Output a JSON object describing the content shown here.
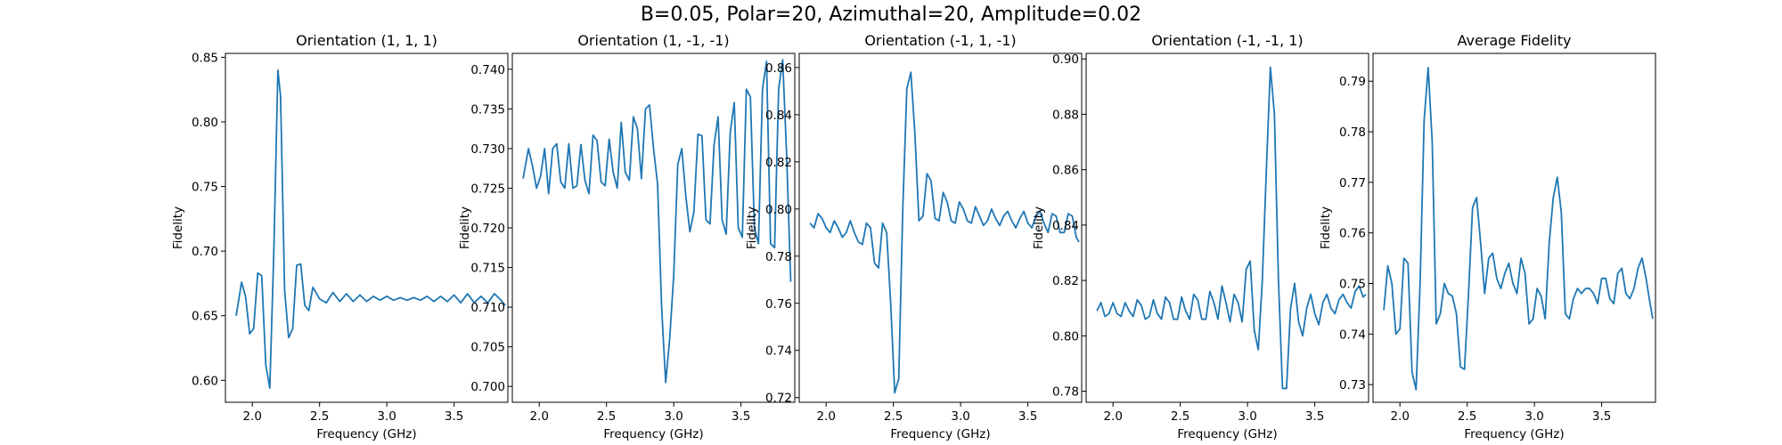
{
  "figure": {
    "suptitle": "B=0.05, Polar=20, Azimuthal=20, Amplitude=0.02"
  },
  "colors": {
    "line": "#1f77b4",
    "axes": "#000000",
    "background": "#ffffff"
  },
  "chart_data": [
    {
      "type": "line",
      "title": "Orientation (1, 1, 1)",
      "xlabel": "Frequency (GHz)",
      "ylabel": "Fidelity",
      "xlim": [
        1.8,
        3.9
      ],
      "ylim": [
        0.583,
        0.853
      ],
      "xticks": [
        2.0,
        2.5,
        3.0,
        3.5
      ],
      "xtick_labels": [
        "2.0",
        "2.5",
        "3.0",
        "3.5"
      ],
      "yticks": [
        0.6,
        0.65,
        0.7,
        0.75,
        0.8,
        0.85
      ],
      "ytick_labels": [
        "0.60",
        "0.65",
        "0.70",
        "0.75",
        "0.80",
        "0.85"
      ],
      "grid": false,
      "series": [
        {
          "x": [
            1.88,
            1.92,
            1.95,
            1.98,
            2.01,
            2.04,
            2.07,
            2.1,
            2.13,
            2.16,
            2.19,
            2.21,
            2.24,
            2.27,
            2.3,
            2.33,
            2.36,
            2.39,
            2.42,
            2.45,
            2.5,
            2.55,
            2.6,
            2.65,
            2.7,
            2.75,
            2.8,
            2.85,
            2.9,
            2.95,
            3.0,
            3.05,
            3.1,
            3.15,
            3.2,
            3.25,
            3.3,
            3.35,
            3.4,
            3.45,
            3.5,
            3.55,
            3.6,
            3.65,
            3.7,
            3.75,
            3.8,
            3.85,
            3.88
          ],
          "y": [
            0.65,
            0.676,
            0.665,
            0.636,
            0.64,
            0.683,
            0.681,
            0.612,
            0.594,
            0.7,
            0.84,
            0.82,
            0.67,
            0.633,
            0.64,
            0.689,
            0.69,
            0.658,
            0.654,
            0.672,
            0.663,
            0.66,
            0.668,
            0.661,
            0.667,
            0.661,
            0.666,
            0.661,
            0.665,
            0.662,
            0.665,
            0.662,
            0.664,
            0.662,
            0.664,
            0.662,
            0.665,
            0.661,
            0.665,
            0.661,
            0.666,
            0.66,
            0.667,
            0.66,
            0.665,
            0.66,
            0.667,
            0.662,
            0.658
          ]
        }
      ]
    },
    {
      "type": "line",
      "title": "Orientation (1, -1, -1)",
      "xlabel": "Frequency (GHz)",
      "ylabel": "Fidelity",
      "xlim": [
        1.8,
        3.9
      ],
      "ylim": [
        0.698,
        0.742
      ],
      "xticks": [
        2.0,
        2.5,
        3.0,
        3.5
      ],
      "xtick_labels": [
        "2.0",
        "2.5",
        "3.0",
        "3.5"
      ],
      "yticks": [
        0.7,
        0.705,
        0.71,
        0.715,
        0.72,
        0.725,
        0.73,
        0.735,
        0.74
      ],
      "ytick_labels": [
        "0.700",
        "0.705",
        "0.710",
        "0.715",
        "0.720",
        "0.725",
        "0.730",
        "0.735",
        "0.740"
      ],
      "grid": false,
      "series": [
        {
          "x": [
            1.88,
            1.92,
            1.95,
            1.98,
            2.01,
            2.04,
            2.07,
            2.1,
            2.13,
            2.16,
            2.19,
            2.22,
            2.25,
            2.28,
            2.31,
            2.34,
            2.37,
            2.4,
            2.43,
            2.46,
            2.49,
            2.52,
            2.55,
            2.58,
            2.61,
            2.64,
            2.67,
            2.7,
            2.73,
            2.76,
            2.79,
            2.82,
            2.85,
            2.88,
            2.91,
            2.94,
            2.97,
            3.0,
            3.03,
            3.06,
            3.09,
            3.12,
            3.15,
            3.18,
            3.21,
            3.24,
            3.27,
            3.3,
            3.33,
            3.36,
            3.39,
            3.42,
            3.45,
            3.48,
            3.51,
            3.54,
            3.57,
            3.6,
            3.63,
            3.66,
            3.69,
            3.72,
            3.75,
            3.78,
            3.81,
            3.84,
            3.87
          ],
          "y": [
            0.7262,
            0.73,
            0.7278,
            0.725,
            0.7265,
            0.73,
            0.7243,
            0.73,
            0.7306,
            0.7258,
            0.725,
            0.7306,
            0.725,
            0.7253,
            0.7305,
            0.726,
            0.7243,
            0.7317,
            0.731,
            0.7258,
            0.7253,
            0.7312,
            0.727,
            0.725,
            0.7333,
            0.727,
            0.726,
            0.734,
            0.7325,
            0.7262,
            0.735,
            0.7355,
            0.73,
            0.7255,
            0.71,
            0.7005,
            0.706,
            0.714,
            0.728,
            0.73,
            0.724,
            0.7195,
            0.722,
            0.7318,
            0.7316,
            0.721,
            0.7205,
            0.7305,
            0.734,
            0.721,
            0.7192,
            0.732,
            0.7358,
            0.72,
            0.7188,
            0.7375,
            0.7365,
            0.72,
            0.718,
            0.7375,
            0.741,
            0.718,
            0.7175,
            0.7375,
            0.7412,
            0.729,
            0.7132
          ]
        }
      ]
    },
    {
      "type": "line",
      "title": "Orientation (-1, 1, -1)",
      "xlabel": "Frequency (GHz)",
      "ylabel": "Fidelity",
      "xlim": [
        1.8,
        3.9
      ],
      "ylim": [
        0.718,
        0.866
      ],
      "xticks": [
        2.0,
        2.5,
        3.0,
        3.5
      ],
      "xtick_labels": [
        "2.0",
        "2.5",
        "3.0",
        "3.5"
      ],
      "yticks": [
        0.72,
        0.74,
        0.76,
        0.78,
        0.8,
        0.82,
        0.84,
        0.86
      ],
      "ytick_labels": [
        "0.72",
        "0.74",
        "0.76",
        "0.78",
        "0.80",
        "0.82",
        "0.84",
        "0.86"
      ],
      "grid": false,
      "series": [
        {
          "x": [
            1.88,
            1.91,
            1.94,
            1.97,
            2.0,
            2.03,
            2.06,
            2.09,
            2.12,
            2.15,
            2.18,
            2.21,
            2.24,
            2.27,
            2.3,
            2.33,
            2.36,
            2.39,
            2.42,
            2.45,
            2.48,
            2.51,
            2.54,
            2.57,
            2.6,
            2.63,
            2.66,
            2.69,
            2.72,
            2.75,
            2.78,
            2.81,
            2.84,
            2.87,
            2.9,
            2.93,
            2.96,
            2.99,
            3.02,
            3.05,
            3.08,
            3.11,
            3.14,
            3.17,
            3.2,
            3.23,
            3.26,
            3.29,
            3.32,
            3.35,
            3.38,
            3.41,
            3.44,
            3.47,
            3.5,
            3.53,
            3.56,
            3.59,
            3.62,
            3.65,
            3.68,
            3.71,
            3.74,
            3.77,
            3.8,
            3.83,
            3.86,
            3.88
          ],
          "y": [
            0.794,
            0.792,
            0.798,
            0.796,
            0.792,
            0.79,
            0.795,
            0.792,
            0.788,
            0.79,
            0.795,
            0.79,
            0.786,
            0.785,
            0.794,
            0.792,
            0.777,
            0.775,
            0.794,
            0.79,
            0.76,
            0.722,
            0.728,
            0.8,
            0.851,
            0.858,
            0.832,
            0.795,
            0.797,
            0.815,
            0.812,
            0.796,
            0.795,
            0.807,
            0.803,
            0.795,
            0.794,
            0.803,
            0.8,
            0.795,
            0.794,
            0.801,
            0.797,
            0.793,
            0.795,
            0.8,
            0.796,
            0.793,
            0.797,
            0.799,
            0.795,
            0.792,
            0.796,
            0.799,
            0.794,
            0.792,
            0.797,
            0.799,
            0.794,
            0.79,
            0.798,
            0.797,
            0.79,
            0.79,
            0.798,
            0.797,
            0.788,
            0.786
          ]
        }
      ]
    },
    {
      "type": "line",
      "title": "Orientation (-1, -1, 1)",
      "xlabel": "Frequency (GHz)",
      "ylabel": "Fidelity",
      "xlim": [
        1.8,
        3.9
      ],
      "ylim": [
        0.776,
        0.902
      ],
      "xticks": [
        2.0,
        2.5,
        3.0,
        3.5
      ],
      "xtick_labels": [
        "2.0",
        "2.5",
        "3.0",
        "3.5"
      ],
      "yticks": [
        0.78,
        0.8,
        0.82,
        0.84,
        0.86,
        0.88,
        0.9
      ],
      "ytick_labels": [
        "0.78",
        "0.80",
        "0.82",
        "0.84",
        "0.86",
        "0.88",
        "0.90"
      ],
      "grid": false,
      "series": [
        {
          "x": [
            1.88,
            1.91,
            1.94,
            1.97,
            2.0,
            2.03,
            2.06,
            2.09,
            2.12,
            2.15,
            2.18,
            2.21,
            2.24,
            2.27,
            2.3,
            2.33,
            2.36,
            2.39,
            2.42,
            2.45,
            2.48,
            2.51,
            2.54,
            2.57,
            2.6,
            2.63,
            2.66,
            2.69,
            2.72,
            2.75,
            2.78,
            2.81,
            2.84,
            2.87,
            2.9,
            2.93,
            2.96,
            2.99,
            3.02,
            3.05,
            3.08,
            3.11,
            3.14,
            3.17,
            3.2,
            3.23,
            3.26,
            3.29,
            3.32,
            3.35,
            3.38,
            3.41,
            3.44,
            3.47,
            3.5,
            3.53,
            3.56,
            3.59,
            3.62,
            3.65,
            3.68,
            3.71,
            3.74,
            3.77,
            3.8,
            3.83,
            3.86,
            3.88
          ],
          "y": [
            0.809,
            0.812,
            0.807,
            0.808,
            0.812,
            0.808,
            0.807,
            0.812,
            0.809,
            0.807,
            0.813,
            0.811,
            0.806,
            0.807,
            0.813,
            0.808,
            0.806,
            0.814,
            0.812,
            0.806,
            0.806,
            0.814,
            0.809,
            0.806,
            0.815,
            0.813,
            0.806,
            0.806,
            0.816,
            0.812,
            0.806,
            0.818,
            0.812,
            0.805,
            0.815,
            0.812,
            0.805,
            0.824,
            0.827,
            0.802,
            0.795,
            0.82,
            0.86,
            0.897,
            0.88,
            0.82,
            0.781,
            0.781,
            0.81,
            0.819,
            0.805,
            0.8,
            0.81,
            0.815,
            0.808,
            0.804,
            0.812,
            0.815,
            0.81,
            0.808,
            0.813,
            0.815,
            0.812,
            0.81,
            0.816,
            0.818,
            0.814,
            0.815
          ]
        }
      ]
    },
    {
      "type": "line",
      "title": "Average Fidelity",
      "xlabel": "Frequency (GHz)",
      "ylabel": "Fidelity",
      "xlim": [
        1.8,
        3.9
      ],
      "ylim": [
        0.7265,
        0.7955
      ],
      "xticks": [
        2.0,
        2.5,
        3.0,
        3.5
      ],
      "xtick_labels": [
        "2.0",
        "2.5",
        "3.0",
        "3.5"
      ],
      "yticks": [
        0.73,
        0.74,
        0.75,
        0.76,
        0.77,
        0.78,
        0.79
      ],
      "ytick_labels": [
        "0.73",
        "0.74",
        "0.75",
        "0.76",
        "0.77",
        "0.78",
        "0.79"
      ],
      "grid": false,
      "series": [
        {
          "x": [
            1.88,
            1.91,
            1.94,
            1.97,
            2.0,
            2.03,
            2.06,
            2.09,
            2.12,
            2.15,
            2.18,
            2.21,
            2.24,
            2.27,
            2.3,
            2.33,
            2.36,
            2.39,
            2.42,
            2.45,
            2.48,
            2.51,
            2.54,
            2.57,
            2.6,
            2.63,
            2.66,
            2.69,
            2.72,
            2.75,
            2.78,
            2.81,
            2.84,
            2.87,
            2.9,
            2.93,
            2.96,
            2.99,
            3.02,
            3.05,
            3.08,
            3.11,
            3.14,
            3.17,
            3.2,
            3.23,
            3.26,
            3.29,
            3.32,
            3.35,
            3.38,
            3.41,
            3.44,
            3.47,
            3.5,
            3.53,
            3.56,
            3.59,
            3.62,
            3.65,
            3.68,
            3.71,
            3.74,
            3.77,
            3.8,
            3.83,
            3.86,
            3.88
          ],
          "y": [
            0.7447,
            0.7535,
            0.75,
            0.74,
            0.741,
            0.755,
            0.754,
            0.7325,
            0.729,
            0.75,
            0.7823,
            0.7927,
            0.778,
            0.742,
            0.744,
            0.75,
            0.748,
            0.7475,
            0.744,
            0.7335,
            0.733,
            0.748,
            0.765,
            0.767,
            0.758,
            0.748,
            0.755,
            0.756,
            0.751,
            0.749,
            0.752,
            0.754,
            0.75,
            0.748,
            0.755,
            0.752,
            0.742,
            0.743,
            0.749,
            0.7475,
            0.743,
            0.758,
            0.767,
            0.771,
            0.764,
            0.744,
            0.743,
            0.747,
            0.749,
            0.748,
            0.749,
            0.749,
            0.748,
            0.746,
            0.751,
            0.751,
            0.747,
            0.746,
            0.752,
            0.753,
            0.748,
            0.747,
            0.749,
            0.753,
            0.755,
            0.751,
            0.746,
            0.743
          ]
        }
      ]
    }
  ]
}
